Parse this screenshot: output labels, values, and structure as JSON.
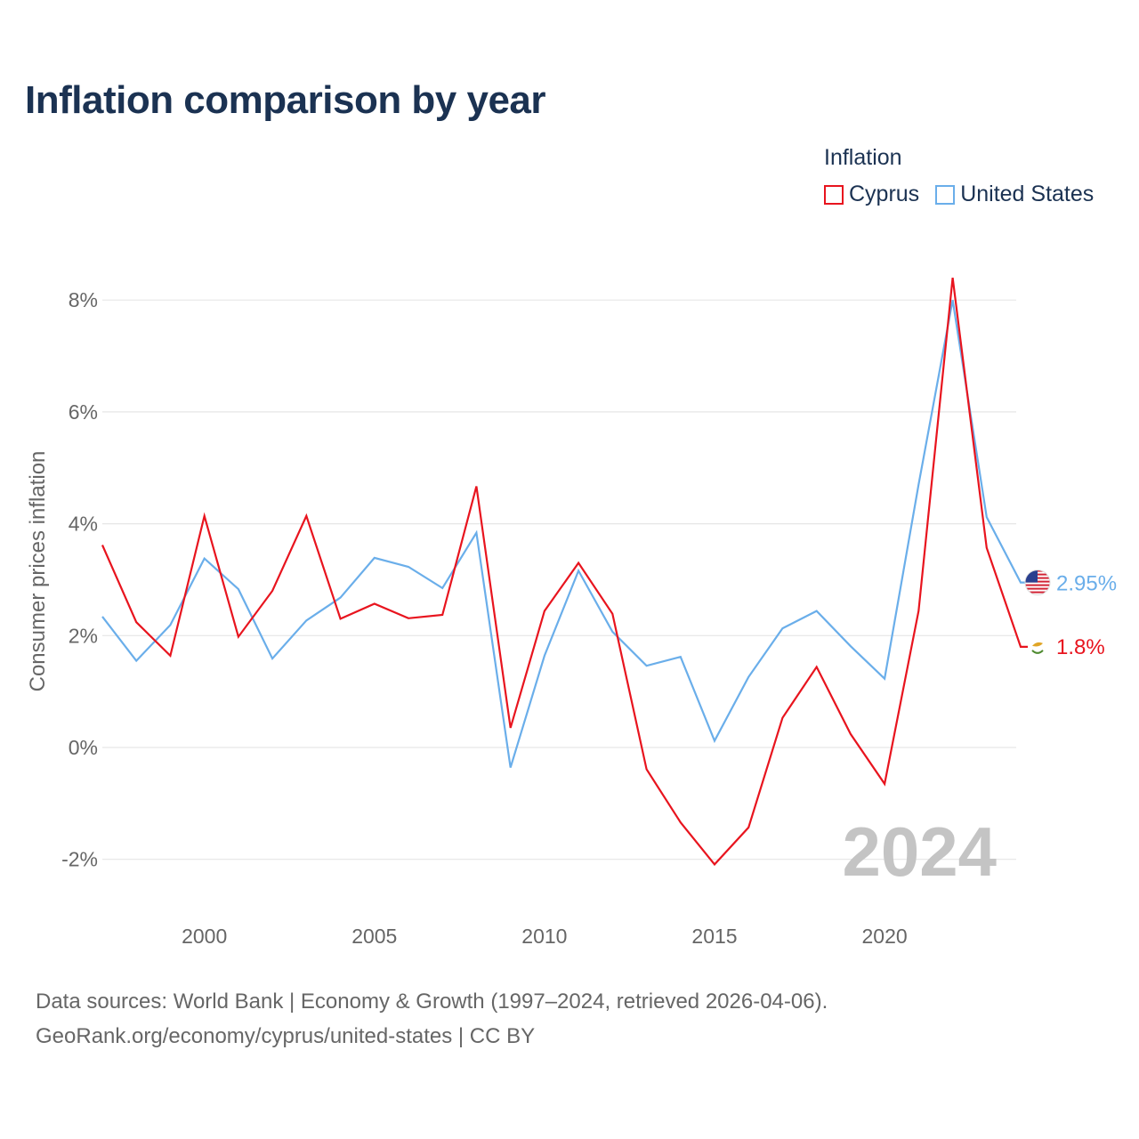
{
  "title": "Inflation comparison by year",
  "legend": {
    "title": "Inflation",
    "items": [
      {
        "name": "Cyprus",
        "color": "#e8141e"
      },
      {
        "name": "United States",
        "color": "#6aaeea"
      }
    ]
  },
  "source": {
    "line1": "Data sources: World Bank | Economy & Growth (1997–2024, retrieved 2026-04-06).",
    "line2": "GeoRank.org/economy/cyprus/united-states | CC BY"
  },
  "chart_data": {
    "type": "line",
    "title": "Inflation comparison by year",
    "xlabel": "",
    "ylabel": "Consumer prices inflation",
    "x": [
      1997,
      1998,
      1999,
      2000,
      2001,
      2002,
      2003,
      2004,
      2005,
      2006,
      2007,
      2008,
      2009,
      2010,
      2011,
      2012,
      2013,
      2014,
      2015,
      2016,
      2017,
      2018,
      2019,
      2020,
      2021,
      2022,
      2023,
      2024
    ],
    "xlim": [
      1997,
      2024
    ],
    "ylim": [
      -3.0,
      8.8
    ],
    "x_ticks": [
      2000,
      2005,
      2010,
      2015,
      2020
    ],
    "x_tick_labels": [
      "2000",
      "2005",
      "2010",
      "2015",
      "2020"
    ],
    "y_ticks": [
      -2,
      0,
      2,
      4,
      6,
      8
    ],
    "y_tick_labels": [
      "-2%",
      "0%",
      "2%",
      "4%",
      "6%",
      "8%"
    ],
    "grid": true,
    "legend_position": "top-right",
    "watermark_year": "2024",
    "series": [
      {
        "name": "Cyprus",
        "color": "#e8141e",
        "values": [
          3.62,
          2.24,
          1.64,
          4.14,
          1.98,
          2.8,
          4.14,
          2.3,
          2.57,
          2.31,
          2.37,
          4.67,
          0.35,
          2.44,
          3.3,
          2.39,
          -0.39,
          -1.34,
          -2.09,
          -1.43,
          0.53,
          1.44,
          0.24,
          -0.65,
          2.44,
          8.4,
          3.57,
          1.8
        ],
        "end_label": "1.8%"
      },
      {
        "name": "United States",
        "color": "#6aaeea",
        "values": [
          2.34,
          1.55,
          2.19,
          3.38,
          2.83,
          1.59,
          2.27,
          2.68,
          3.39,
          3.23,
          2.85,
          3.84,
          -0.36,
          1.64,
          3.16,
          2.07,
          1.46,
          1.62,
          0.12,
          1.26,
          2.13,
          2.44,
          1.81,
          1.23,
          4.7,
          8.0,
          4.12,
          2.95
        ],
        "end_label": "2.95%"
      }
    ]
  }
}
